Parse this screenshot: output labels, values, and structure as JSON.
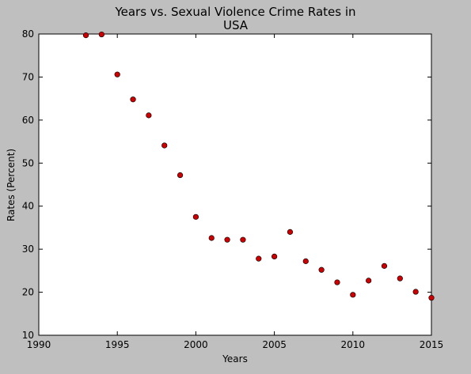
{
  "chart_data": {
    "type": "scatter",
    "title_line1": "Years vs. Sexual Violence Crime Rates in",
    "title_line2": "USA",
    "xlabel": "Years",
    "ylabel": "Rates (Percent)",
    "xlim": [
      1990,
      2015
    ],
    "ylim": [
      10,
      80
    ],
    "xticks": [
      1990,
      1995,
      2000,
      2005,
      2010,
      2015
    ],
    "yticks": [
      10,
      20,
      30,
      40,
      50,
      60,
      70,
      80
    ],
    "grid": false,
    "marker_color": "#cc0000",
    "x": [
      1993,
      1994,
      1995,
      1996,
      1997,
      1998,
      1999,
      2000,
      2001,
      2002,
      2003,
      2004,
      2005,
      2006,
      2007,
      2008,
      2009,
      2010,
      2011,
      2012,
      2013,
      2014,
      2015
    ],
    "y": [
      79.7,
      79.9,
      70.6,
      64.8,
      61.1,
      54.1,
      47.2,
      37.5,
      32.6,
      32.2,
      32.2,
      27.8,
      28.3,
      34.0,
      27.2,
      25.2,
      22.3,
      19.4,
      22.7,
      26.1,
      23.2,
      20.1,
      18.7
    ]
  }
}
